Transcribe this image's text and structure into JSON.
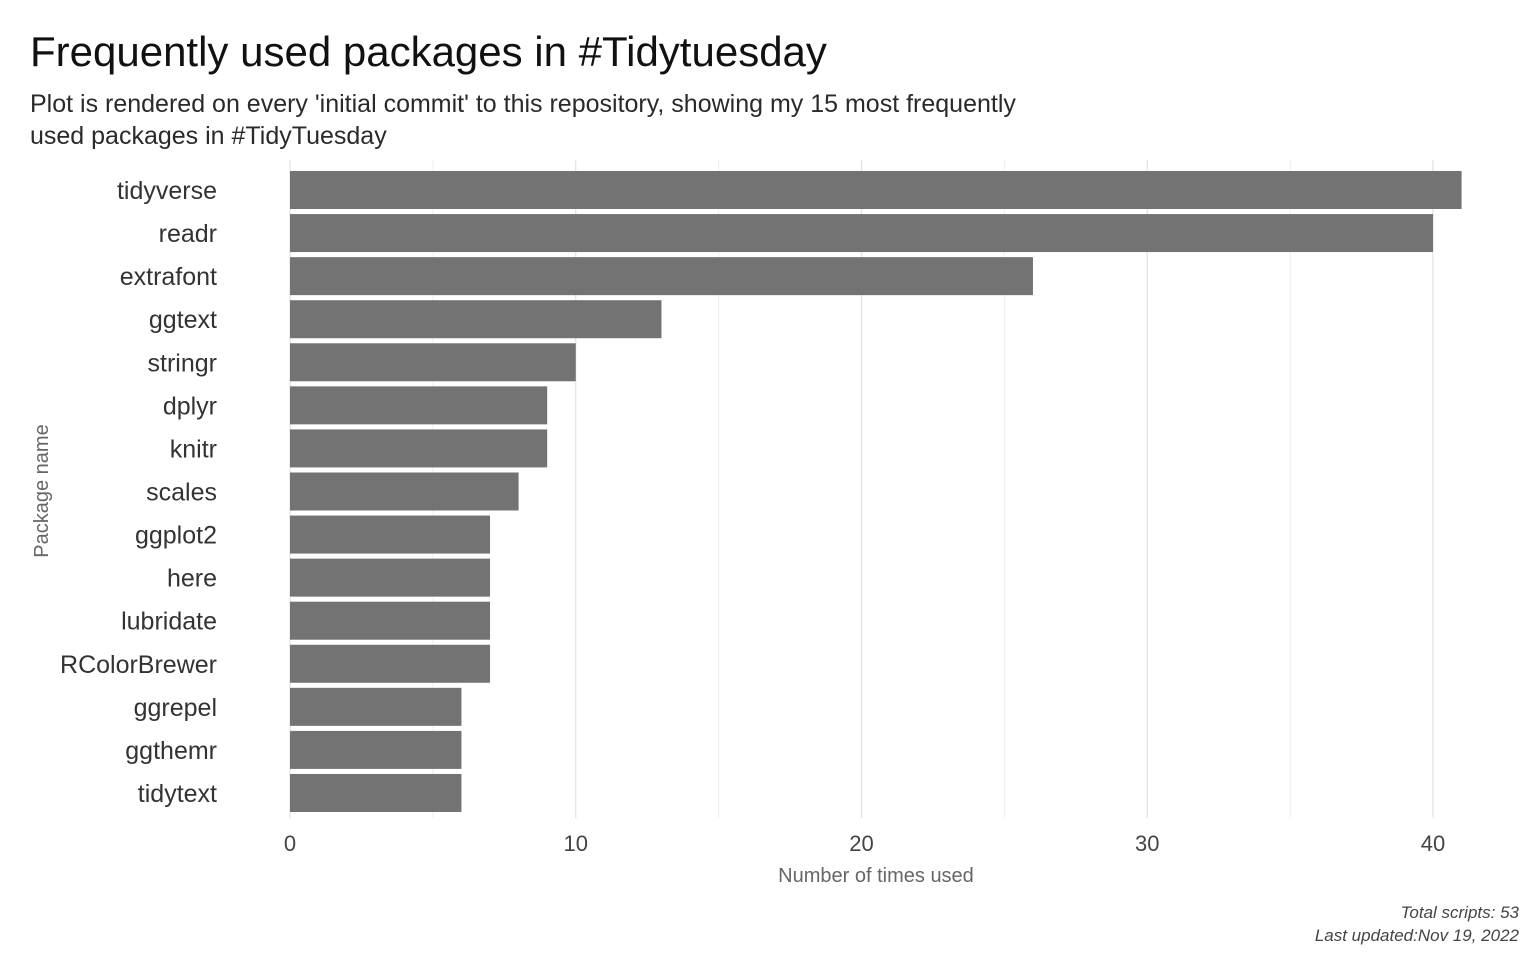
{
  "chart_data": {
    "type": "bar",
    "orientation": "horizontal",
    "title": "Frequently used packages in #Tidytuesday",
    "subtitle_lines": [
      "Plot is rendered on every 'initial commit' to this repository, showing my 15 most frequently",
      "used packages in #TidyTuesday"
    ],
    "xlabel": "Number of times used",
    "ylabel": "Package name",
    "categories": [
      "tidyverse",
      "readr",
      "extrafont",
      "ggtext",
      "stringr",
      "dplyr",
      "knitr",
      "scales",
      "ggplot2",
      "here",
      "lubridate",
      "RColorBrewer",
      "ggrepel",
      "ggthemr",
      "tidytext"
    ],
    "values": [
      41,
      40,
      26,
      13,
      10,
      9,
      9,
      8,
      7,
      7,
      7,
      7,
      6,
      6,
      6
    ],
    "xlim": [
      0,
      41
    ],
    "xticks": [
      0,
      10,
      20,
      30,
      40
    ],
    "grid": true,
    "legend": "none",
    "bar_color": "#737373",
    "caption_lines": [
      "Total scripts: 53",
      "Last updated:Nov 19, 2022"
    ]
  }
}
